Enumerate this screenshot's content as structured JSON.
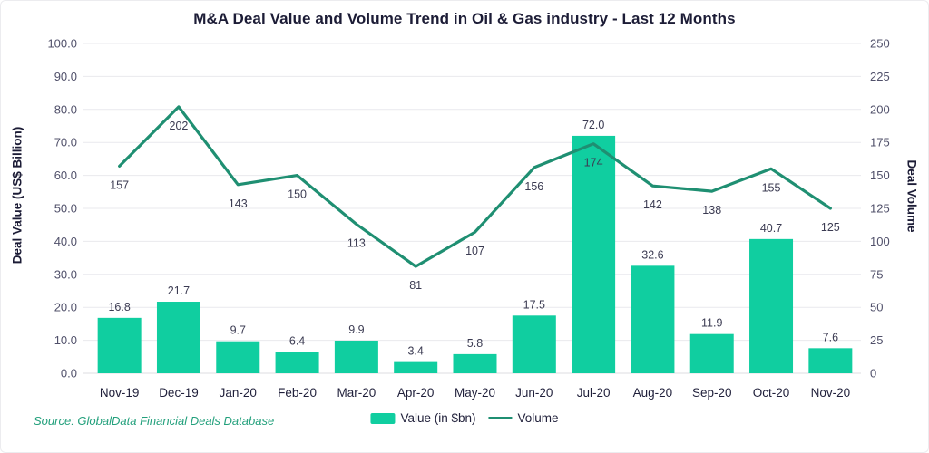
{
  "chart": {
    "title": "M&A Deal Value and Volume Trend in Oil & Gas industry - Last 12 Months",
    "left_axis_title": "Deal Value (US$ Billion)",
    "right_axis_title": "Deal Volume",
    "source": "Source: GlobalData Financial Deals Database",
    "legend": {
      "value_label": "Value (in $bn)",
      "volume_label": "Volume"
    }
  },
  "chart_data": {
    "type": "bar",
    "subtype": "bar+line dual axis",
    "title": "M&A Deal Value and Volume Trend in Oil & Gas industry - Last 12 Months",
    "categories": [
      "Nov-19",
      "Dec-19",
      "Jan-20",
      "Feb-20",
      "Mar-20",
      "Apr-20",
      "May-20",
      "Jun-20",
      "Jul-20",
      "Aug-20",
      "Sep-20",
      "Oct-20",
      "Nov-20"
    ],
    "series": [
      {
        "name": "Value (in $bn)",
        "type": "bar",
        "axis": "left",
        "color": "#10cea0",
        "values": [
          16.8,
          21.7,
          9.7,
          6.4,
          9.9,
          3.4,
          5.8,
          17.5,
          72.0,
          32.6,
          11.9,
          40.7,
          7.6
        ]
      },
      {
        "name": "Volume",
        "type": "line",
        "axis": "right",
        "color": "#1f8f72",
        "values": [
          157,
          202,
          143,
          150,
          113,
          81,
          107,
          156,
          174,
          142,
          138,
          155,
          125
        ]
      }
    ],
    "left_axis": {
      "label": "Deal Value (US$ Billion)",
      "min": 0,
      "max": 100,
      "step": 10,
      "tick_format": "one_decimal"
    },
    "right_axis": {
      "label": "Deal Volume",
      "min": 0,
      "max": 250,
      "step": 25,
      "tick_format": "integer"
    },
    "grid": true,
    "legend_position": "bottom",
    "data_labels": true
  },
  "colors": {
    "bar_fill": "#10cea0",
    "line_stroke": "#1f8f72",
    "gridline": "#e9e9ed",
    "baseline": "#dcdce2",
    "tick_label": "#50506a",
    "data_label": "#3b3b52",
    "category_label": "#1f1f3a",
    "title_text": "#1c1c36",
    "source_text": "#23a07c"
  }
}
